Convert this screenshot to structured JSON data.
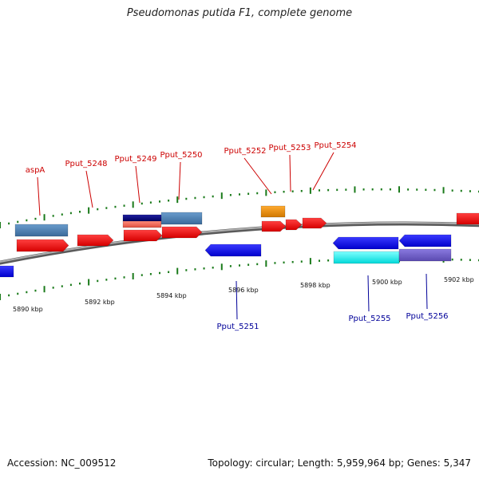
{
  "title": "Pseudomonas putida F1, complete genome",
  "footer": {
    "accession": "Accession: NC_009512",
    "summary": "Topology: circular; Length: 5,959,964 bp; Genes: 5,347"
  },
  "colors": {
    "forward_label": "#cc0000",
    "reverse_label": "#000099",
    "forward_tick": "#1a7a1a",
    "backbone": "#8a8a8a"
  },
  "kbp_labels": [
    "5890 kbp",
    "5892 kbp",
    "5894 kbp",
    "5896 kbp",
    "5898 kbp",
    "5900 kbp",
    "5902 kbp"
  ],
  "genes": [
    {
      "label": "aspA",
      "strand": "forward",
      "color": "#ff1a1a"
    },
    {
      "label": "Pput_5248",
      "strand": "forward",
      "color": "#ff1a1a"
    },
    {
      "label": "Pput_5249",
      "strand": "forward",
      "color": "#ff1a1a"
    },
    {
      "label": "Pput_5250",
      "strand": "forward",
      "color": "#ff1a1a"
    },
    {
      "label": "Pput_5251",
      "strand": "reverse",
      "color": "#1a1aff"
    },
    {
      "label": "Pput_5252",
      "strand": "forward",
      "color": "#ff1a1a"
    },
    {
      "label": "Pput_5253",
      "strand": "forward",
      "color": "#ff1a1a"
    },
    {
      "label": "Pput_5254",
      "strand": "forward",
      "color": "#ff1a1a"
    },
    {
      "label": "Pput_5255",
      "strand": "reverse",
      "color": "#1a1aff"
    },
    {
      "label": "Pput_5256",
      "strand": "reverse",
      "color": "#1a1aff"
    }
  ],
  "features": [
    {
      "kind": "cds-forward",
      "color": "#ff1a1a"
    },
    {
      "kind": "gene-blue",
      "color": "#4682b4"
    },
    {
      "kind": "misc-navy",
      "color": "#000080"
    },
    {
      "kind": "misc-salmon",
      "color": "#fa6a5a"
    },
    {
      "kind": "misc-orange",
      "color": "#f0900a"
    },
    {
      "kind": "cds-reverse",
      "color": "#1a1aff"
    },
    {
      "kind": "misc-cyan",
      "color": "#00ffff"
    },
    {
      "kind": "misc-purple",
      "color": "#7060c8"
    }
  ]
}
